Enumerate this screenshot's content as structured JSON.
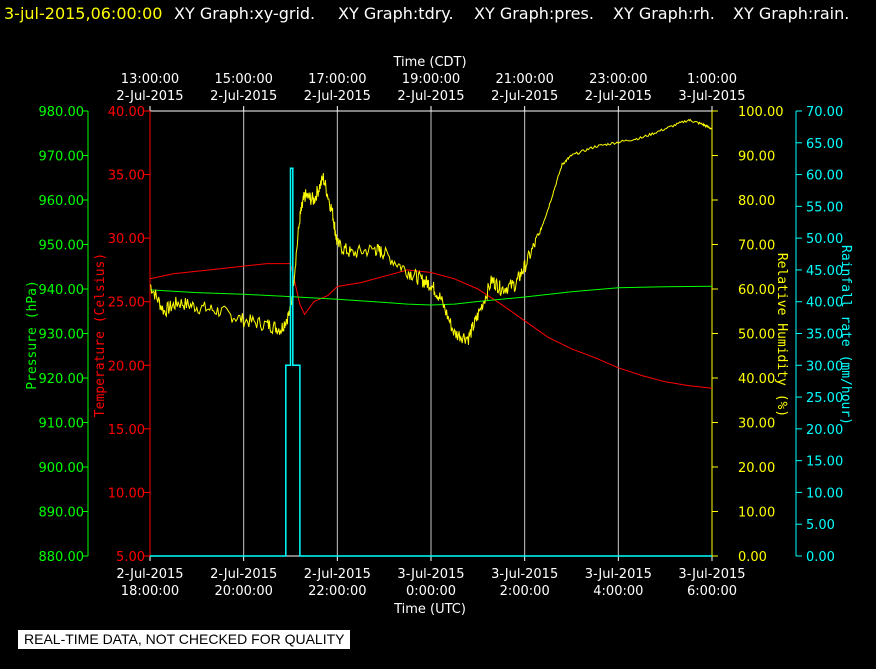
{
  "header": {
    "timestamp": "3-jul-2015,06:00:00",
    "graphs": [
      "XY Graph:xy-grid.",
      "XY Graph:tdry.",
      "XY Graph:pres.",
      "XY Graph:rh.",
      "XY Graph:rain."
    ]
  },
  "colors": {
    "background": "#000000",
    "timestamp": "#ffff00",
    "graph_labels": "#ffffff",
    "temperature": "#ff0000",
    "pressure": "#00ff00",
    "humidity": "#ffff00",
    "rain": "#00ffff",
    "grid": "#c8c8c8",
    "banner_bg": "#ffffff",
    "banner_text": "#000000"
  },
  "banner": "REAL-TIME DATA, NOT CHECKED FOR QUALITY",
  "chart_data": {
    "type": "line",
    "top_axis": {
      "title": "Time (CDT)",
      "ticks": [
        [
          "13:00:00",
          "2-Jul-2015"
        ],
        [
          "15:00:00",
          "2-Jul-2015"
        ],
        [
          "17:00:00",
          "2-Jul-2015"
        ],
        [
          "19:00:00",
          "2-Jul-2015"
        ],
        [
          "21:00:00",
          "2-Jul-2015"
        ],
        [
          "23:00:00",
          "2-Jul-2015"
        ],
        [
          "1:00:00",
          "3-Jul-2015"
        ]
      ]
    },
    "bottom_axis": {
      "title": "Time (UTC)",
      "ticks": [
        [
          "2-Jul-2015",
          "18:00:00"
        ],
        [
          "2-Jul-2015",
          "20:00:00"
        ],
        [
          "2-Jul-2015",
          "22:00:00"
        ],
        [
          "3-Jul-2015",
          "0:00:00"
        ],
        [
          "3-Jul-2015",
          "2:00:00"
        ],
        [
          "3-Jul-2015",
          "4:00:00"
        ],
        [
          "3-Jul-2015",
          "6:00:00"
        ]
      ]
    },
    "xlim_utc_hours": [
      18,
      30
    ],
    "grid": true,
    "axes": {
      "pressure": {
        "label": "Pressure (hPa)",
        "ylim": [
          880,
          980
        ],
        "ticks": [
          "880.00",
          "890.00",
          "900.00",
          "910.00",
          "920.00",
          "930.00",
          "940.00",
          "950.00",
          "960.00",
          "970.00",
          "980.00"
        ]
      },
      "temperature": {
        "label": "Temperature (Celsius)",
        "ylim": [
          5,
          40
        ],
        "ticks": [
          "5.00",
          "10.00",
          "15.00",
          "20.00",
          "25.00",
          "30.00",
          "35.00",
          "40.00"
        ]
      },
      "humidity": {
        "label": "Relative Humidity (%)",
        "ylim": [
          0,
          100
        ],
        "ticks": [
          "0.00",
          "10.00",
          "20.00",
          "30.00",
          "40.00",
          "50.00",
          "60.00",
          "70.00",
          "80.00",
          "90.00",
          "100.00"
        ]
      },
      "rain": {
        "label": "Rainfall rate (mm/hour)",
        "ylim": [
          0,
          70
        ],
        "ticks": [
          "0.00",
          "5.00",
          "10.00",
          "15.00",
          "20.00",
          "25.00",
          "30.00",
          "35.00",
          "40.00",
          "45.00",
          "50.00",
          "55.00",
          "60.00",
          "65.00",
          "70.00"
        ]
      }
    },
    "series": [
      {
        "axis": "temperature",
        "x": [
          18.0,
          18.5,
          19.0,
          19.5,
          20.0,
          20.5,
          21.0,
          21.2,
          21.3,
          21.5,
          21.8,
          22.0,
          22.5,
          23.0,
          23.5,
          24.0,
          24.5,
          25.0,
          25.5,
          26.0,
          26.5,
          27.0,
          27.5,
          28.0,
          28.5,
          29.0,
          29.5,
          30.0
        ],
        "y": [
          26.8,
          27.2,
          27.4,
          27.6,
          27.8,
          28.0,
          28.0,
          24.8,
          24.0,
          25.0,
          25.5,
          26.2,
          26.5,
          27.0,
          27.5,
          27.3,
          26.8,
          26.0,
          24.8,
          23.5,
          22.2,
          21.3,
          20.6,
          19.8,
          19.2,
          18.7,
          18.4,
          18.2
        ]
      },
      {
        "axis": "pressure",
        "x": [
          18.0,
          19.0,
          20.0,
          21.0,
          22.0,
          23.0,
          23.5,
          24.0,
          24.5,
          25.0,
          26.0,
          27.0,
          28.0,
          29.0,
          30.0
        ],
        "y": [
          939.8,
          939.2,
          938.8,
          938.3,
          937.7,
          937.0,
          936.6,
          936.4,
          936.6,
          937.2,
          938.2,
          939.4,
          940.3,
          940.5,
          940.6
        ]
      },
      {
        "axis": "humidity",
        "x": [
          18.0,
          18.3,
          18.6,
          19.0,
          19.5,
          20.0,
          20.5,
          20.8,
          21.0,
          21.2,
          21.3,
          21.5,
          21.7,
          21.9,
          22.0,
          22.3,
          22.8,
          23.0,
          23.5,
          23.8,
          24.0,
          24.2,
          24.5,
          24.8,
          25.0,
          25.3,
          25.5,
          25.8,
          26.0,
          26.3,
          26.5,
          26.8,
          27.0,
          27.5,
          28.0,
          28.5,
          29.0,
          29.5,
          29.8,
          30.0
        ],
        "y": [
          61,
          55,
          57,
          56,
          55,
          53,
          52,
          51,
          55,
          76,
          81,
          80,
          85,
          77,
          70,
          68,
          69,
          68,
          64,
          62,
          61,
          58,
          50,
          49,
          54,
          62,
          60,
          61,
          65,
          72,
          78,
          88,
          90,
          92,
          93,
          94,
          96,
          98,
          97,
          96
        ]
      },
      {
        "axis": "rain",
        "x": [
          18.0,
          20.9,
          20.9,
          21.0,
          21.0,
          21.05,
          21.05,
          21.1,
          21.1,
          21.2,
          21.2,
          30.0
        ],
        "y": [
          0,
          0,
          30,
          30,
          61,
          61,
          30,
          30,
          30,
          30,
          0,
          0
        ]
      }
    ]
  }
}
